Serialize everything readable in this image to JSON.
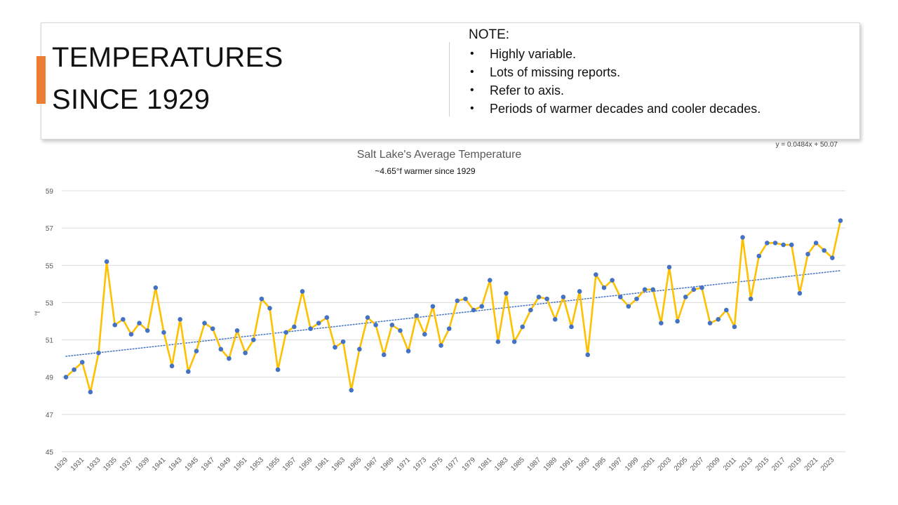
{
  "slide": {
    "title_line1": "TEMPERATURES",
    "title_line2": "SINCE 1929",
    "accent_color": "#ed7d31"
  },
  "note": {
    "heading": "NOTE:",
    "items": [
      "Highly variable.",
      "Lots of missing reports.",
      "Refer to axis.",
      "Periods of warmer decades and cooler decades."
    ]
  },
  "chart_data": {
    "type": "line",
    "title": "Salt Lake's Average Temperature",
    "subtitle": "~4.65°f warmer since 1929",
    "xlabel": "",
    "ylabel": "°f",
    "ylim": [
      45,
      59
    ],
    "yticks": [
      45,
      47,
      49,
      51,
      53,
      55,
      57,
      59
    ],
    "grid": true,
    "legend": "none",
    "trendline": {
      "label": "y = 0.0484x + 50.07",
      "slope": 0.0484,
      "intercept": 50.07,
      "style": "dotted",
      "color": "#4472c4"
    },
    "line_color": "#ffc000",
    "marker_color": "#4472c4",
    "x_tick_labels": [
      "1929",
      "1931",
      "1933",
      "1935",
      "1937",
      "1939",
      "1941",
      "1943",
      "1945",
      "1947",
      "1949",
      "1951",
      "1953",
      "1955",
      "1957",
      "1959",
      "1961",
      "1963",
      "1965",
      "1967",
      "1969",
      "1971",
      "1973",
      "1975",
      "1977",
      "1979",
      "1981",
      "1983",
      "1985",
      "1987",
      "1989",
      "1991",
      "1993",
      "1995",
      "1997",
      "1999",
      "2001",
      "2003",
      "2005",
      "2007",
      "2009",
      "2011",
      "2013",
      "2015",
      "2017",
      "2019",
      "2021",
      "2023"
    ],
    "categories": [
      1929,
      1930,
      1931,
      1932,
      1933,
      1934,
      1935,
      1936,
      1937,
      1938,
      1939,
      1940,
      1941,
      1942,
      1943,
      1944,
      1945,
      1946,
      1947,
      1948,
      1949,
      1950,
      1951,
      1952,
      1953,
      1954,
      1955,
      1956,
      1957,
      1958,
      1959,
      1960,
      1961,
      1962,
      1963,
      1964,
      1965,
      1966,
      1967,
      1968,
      1969,
      1970,
      1971,
      1972,
      1973,
      1974,
      1975,
      1976,
      1977,
      1978,
      1979,
      1980,
      1981,
      1982,
      1983,
      1984,
      1985,
      1986,
      1987,
      1988,
      1989,
      1990,
      1991,
      1992,
      1993,
      1994,
      1995,
      1996,
      1997,
      1998,
      1999,
      2000,
      2001,
      2002,
      2003,
      2004,
      2005,
      2006,
      2007,
      2008,
      2009,
      2010,
      2011,
      2012,
      2013,
      2014,
      2015,
      2016,
      2017,
      2018,
      2019,
      2020,
      2021,
      2022,
      2023,
      2024
    ],
    "values": [
      49.0,
      49.4,
      49.8,
      48.2,
      50.3,
      55.2,
      51.8,
      52.1,
      51.3,
      51.9,
      51.5,
      53.8,
      51.4,
      49.6,
      52.1,
      49.3,
      50.4,
      51.9,
      51.6,
      50.5,
      50.0,
      51.5,
      50.3,
      51.0,
      53.2,
      52.7,
      49.4,
      51.4,
      51.7,
      53.6,
      51.6,
      51.9,
      52.2,
      50.6,
      50.9,
      48.3,
      50.5,
      52.2,
      51.8,
      50.2,
      51.8,
      51.5,
      50.4,
      52.3,
      51.3,
      52.8,
      50.7,
      51.6,
      53.1,
      53.2,
      52.6,
      52.8,
      54.2,
      50.9,
      53.5,
      50.9,
      51.7,
      52.6,
      53.3,
      53.2,
      52.1,
      53.3,
      51.7,
      53.6,
      50.2,
      54.5,
      53.8,
      54.2,
      53.3,
      52.8,
      53.2,
      53.7,
      53.7,
      51.9,
      54.9,
      52.0,
      53.3,
      53.7,
      53.8,
      51.9,
      52.1,
      52.6,
      51.7,
      56.5,
      53.2,
      55.5,
      56.2,
      56.2,
      56.1,
      56.1,
      53.5,
      55.6,
      56.2,
      55.8,
      55.4,
      57.4
    ]
  }
}
